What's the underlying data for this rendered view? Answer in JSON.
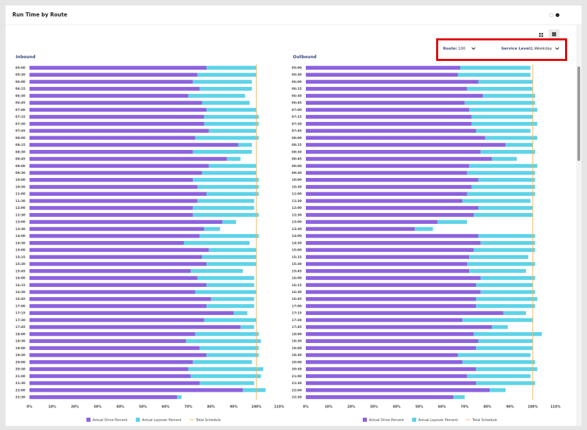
{
  "header": {
    "title": "Run Time by Route"
  },
  "filters": {
    "route_label": "Route:",
    "route_value": "100",
    "service_label": "Service Level:",
    "service_value": "1-Weekday"
  },
  "chart_data": [
    {
      "type": "stacked-barh",
      "title": "Inbound",
      "categories": [
        "05:00",
        "05:30",
        "06:00",
        "06:15",
        "06:30",
        "06:45",
        "07:00",
        "07:15",
        "07:30",
        "07:45",
        "08:00",
        "08:15",
        "08:30",
        "08:45",
        "09:00",
        "09:30",
        "10:00",
        "10:30",
        "11:00",
        "11:30",
        "12:00",
        "12:30",
        "13:00",
        "13:30",
        "14:00",
        "14:30",
        "15:00",
        "15:15",
        "15:30",
        "15:45",
        "16:00",
        "16:15",
        "16:30",
        "16:45",
        "17:00",
        "17:15",
        "17:30",
        "17:45",
        "18:00",
        "18:30",
        "19:00",
        "19:30",
        "20:00",
        "20:30",
        "21:00",
        "21:30",
        "22:00",
        "22:30"
      ],
      "series": [
        {
          "name": "Actual Drive Percent",
          "color": "#8c62de",
          "values": [
            78,
            74,
            72,
            75,
            70,
            76,
            78,
            77,
            77,
            79,
            73,
            92,
            72,
            87,
            79,
            76,
            72,
            74,
            78,
            74,
            72,
            72,
            85,
            77,
            75,
            68,
            79,
            76,
            78,
            71,
            74,
            78,
            73,
            80,
            78,
            90,
            77,
            93,
            73,
            69,
            75,
            78,
            72,
            70,
            71,
            75,
            94,
            65
          ]
        },
        {
          "name": "Actual Layover Percent",
          "color": "#5dd3e8",
          "values": [
            22,
            26,
            26,
            23,
            25,
            21,
            22,
            24,
            24,
            21,
            28,
            6,
            26,
            6,
            21,
            24,
            29,
            27,
            23,
            25,
            27,
            29,
            6,
            7,
            26,
            29,
            21,
            24,
            22,
            23,
            25,
            21,
            27,
            19,
            21,
            6,
            23,
            6,
            28,
            33,
            26,
            23,
            26,
            33,
            31,
            24,
            10,
            2
          ]
        }
      ],
      "reference_line": {
        "name": "Total Schedule",
        "value": 100,
        "color": "#f2b35b"
      },
      "xlim": [
        0,
        110
      ],
      "xticks": [
        {
          "value": 0,
          "label": "0%"
        },
        {
          "value": 10,
          "label": "10%"
        },
        {
          "value": 20,
          "label": "20%"
        },
        {
          "value": 30,
          "label": "30%"
        },
        {
          "value": 40,
          "label": "40%"
        },
        {
          "value": 50,
          "label": "50%"
        },
        {
          "value": 60,
          "label": "60%"
        },
        {
          "value": 70,
          "label": "70%"
        },
        {
          "value": 80,
          "label": "80%"
        },
        {
          "value": 90,
          "label": "90%"
        },
        {
          "value": 100,
          "label": "100%"
        },
        {
          "value": 110,
          "label": "110%"
        }
      ]
    },
    {
      "type": "stacked-barh",
      "title": "Outbound",
      "categories": [
        "05:00",
        "05:30",
        "06:00",
        "06:15",
        "06:30",
        "06:45",
        "07:00",
        "07:15",
        "07:30",
        "07:45",
        "08:00",
        "08:15",
        "08:30",
        "08:45",
        "09:00",
        "09:30",
        "10:00",
        "10:30",
        "11:00",
        "11:30",
        "12:00",
        "12:30",
        "13:00",
        "13:30",
        "14:00",
        "14:30",
        "15:00",
        "15:15",
        "15:30",
        "15:45",
        "16:00",
        "16:15",
        "16:30",
        "16:45",
        "17:00",
        "17:15",
        "17:30",
        "17:45",
        "18:00",
        "18:30",
        "19:00",
        "19:30",
        "20:00",
        "20:30",
        "21:00",
        "21:30",
        "22:00",
        "22:30"
      ],
      "series": [
        {
          "name": "Actual Drive Percent",
          "color": "#8c62de",
          "values": [
            68,
            67,
            76,
            71,
            78,
            70,
            72,
            73,
            73,
            75,
            79,
            88,
            77,
            82,
            72,
            71,
            76,
            73,
            71,
            69,
            76,
            74,
            58,
            48,
            76,
            77,
            74,
            72,
            71,
            72,
            77,
            75,
            77,
            75,
            75,
            87,
            69,
            82,
            74,
            76,
            75,
            67,
            69,
            75,
            71,
            75,
            81,
            65
          ]
        },
        {
          "name": "Actual Layover Percent",
          "color": "#5dd3e8",
          "values": [
            31,
            32,
            24,
            29,
            23,
            31,
            30,
            27,
            29,
            24,
            23,
            12,
            24,
            11,
            30,
            30,
            25,
            28,
            30,
            30,
            24,
            26,
            13,
            8,
            25,
            24,
            27,
            26,
            30,
            25,
            24,
            25,
            24,
            27,
            26,
            10,
            31,
            7,
            30,
            24,
            25,
            32,
            32,
            27,
            28,
            26,
            7,
            5
          ]
        }
      ],
      "reference_line": {
        "name": "Total Schedule",
        "value": 100,
        "color": "#f2b35b"
      },
      "xlim": [
        0,
        110
      ],
      "xticks": [
        {
          "value": 0,
          "label": "0%"
        },
        {
          "value": 10,
          "label": "10%"
        },
        {
          "value": 20,
          "label": "20%"
        },
        {
          "value": 30,
          "label": "30%"
        },
        {
          "value": 40,
          "label": "40%"
        },
        {
          "value": 50,
          "label": "50%"
        },
        {
          "value": 60,
          "label": "60%"
        },
        {
          "value": 70,
          "label": "70%"
        },
        {
          "value": 80,
          "label": "80%"
        },
        {
          "value": 90,
          "label": "90%"
        },
        {
          "value": 100,
          "label": "100%"
        },
        {
          "value": 110,
          "label": "110%"
        }
      ]
    }
  ]
}
